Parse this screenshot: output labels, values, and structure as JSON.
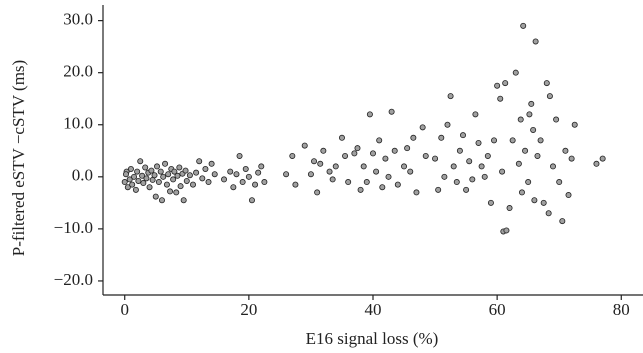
{
  "chart_data": {
    "type": "scatter",
    "x_label": "E16 signal loss (%)",
    "y_label": "P-filtered eSTV −cSTV (ms)",
    "x": [
      0,
      0.3,
      0.5,
      0.2,
      0.8,
      1,
      1.2,
      1.5,
      1.8,
      2,
      2.2,
      2.5,
      2.8,
      3,
      3.3,
      3.5,
      3.8,
      4,
      4.3,
      4.5,
      4.8,
      5,
      5.2,
      5.5,
      5.8,
      6,
      6.2,
      6.5,
      6.8,
      7,
      7.3,
      7.5,
      7.8,
      8,
      8.3,
      8.5,
      8.8,
      9,
      9.3,
      9.5,
      9.8,
      10,
      10.5,
      11,
      11.5,
      12,
      12.5,
      13,
      13.5,
      14,
      14.5,
      16,
      17,
      17.5,
      18,
      18.5,
      19,
      19.5,
      20,
      20.5,
      21,
      21.5,
      22,
      22.5,
      26,
      27,
      27.5,
      29,
      30,
      30.5,
      31,
      31.5,
      32,
      33,
      33.5,
      34,
      35,
      35.5,
      36,
      37,
      37.5,
      38,
      38.5,
      39,
      39.5,
      40,
      40.5,
      41,
      41.5,
      42,
      42.5,
      43,
      43.5,
      44,
      45,
      45.5,
      46,
      46.5,
      47,
      48,
      48.5,
      50,
      50.5,
      51,
      51.5,
      52,
      52.5,
      53,
      53.5,
      54,
      54.5,
      55,
      55.5,
      56,
      56.5,
      57,
      57.5,
      58,
      58.5,
      59,
      59.5,
      60,
      60.5,
      60.8,
      61,
      61.3,
      61.5,
      62,
      62.5,
      63,
      63.5,
      63.8,
      64,
      64.2,
      64.5,
      65,
      65.2,
      65.5,
      65.8,
      66,
      66.2,
      66.5,
      67,
      67.5,
      68,
      68.3,
      68.5,
      69,
      69.5,
      70,
      70.5,
      71,
      71.5,
      72,
      72.5,
      76,
      77
    ],
    "values": [
      -1,
      1,
      -2,
      0.5,
      -0.5,
      1.5,
      -1.5,
      0,
      -2.5,
      1,
      -0.8,
      3,
      0.2,
      -1.2,
      1.8,
      -0.3,
      0.8,
      -2,
      1.2,
      -0.6,
      0.3,
      -3.8,
      2,
      -1,
      1,
      -4.5,
      0,
      2.5,
      -1.5,
      0.5,
      -2.8,
      1.5,
      -0.5,
      1,
      -3,
      0.2,
      1.8,
      -1.8,
      0.6,
      -4.5,
      1.2,
      -0.8,
      0.3,
      -1.5,
      0.8,
      3,
      -0.3,
      1.5,
      -1,
      2.5,
      0.5,
      -0.5,
      1,
      -2,
      0.5,
      4,
      -1,
      1.5,
      0,
      -4.5,
      -1.5,
      0.8,
      2,
      -1,
      0.5,
      4,
      -1.5,
      6,
      0.5,
      3,
      -3,
      2.5,
      5,
      1,
      -0.5,
      2,
      7.5,
      4,
      -1,
      4.5,
      5.5,
      -2.5,
      2,
      -1,
      12,
      4.5,
      1,
      7,
      -2,
      3.5,
      0,
      12.5,
      5,
      -1.5,
      2,
      5.5,
      1,
      7.5,
      -3,
      9.5,
      4,
      3.5,
      -2.5,
      7.5,
      0,
      10,
      15.5,
      2,
      -1,
      5,
      8,
      -2.5,
      3,
      -0.5,
      12,
      6.5,
      2,
      0,
      4,
      -5,
      7,
      17.5,
      15,
      1,
      -10.5,
      18,
      -10.3,
      -6,
      7,
      20,
      2.5,
      11,
      -3,
      29,
      5,
      -1,
      12,
      14,
      9,
      -4.5,
      26,
      4,
      7,
      -5,
      18,
      -7,
      15.5,
      2,
      11,
      -1,
      -8.5,
      5,
      -3.5,
      3.5,
      10,
      2.5,
      3.5
    ],
    "color": "#a0a0a0",
    "xlim": [
      -3.5,
      83.5
    ],
    "xticks": [
      0,
      20,
      40,
      60,
      80
    ],
    "ylim": [
      -22.7,
      33
    ],
    "yticks": [
      {
        "value": -20,
        "label": "−20.0"
      },
      {
        "value": -10,
        "label": "−10.0"
      },
      {
        "value": 0,
        "label": "0.0"
      },
      {
        "value": 10,
        "label": "10.0"
      },
      {
        "value": 20,
        "label": "20.0"
      },
      {
        "value": 30,
        "label": "30.0"
      }
    ]
  }
}
